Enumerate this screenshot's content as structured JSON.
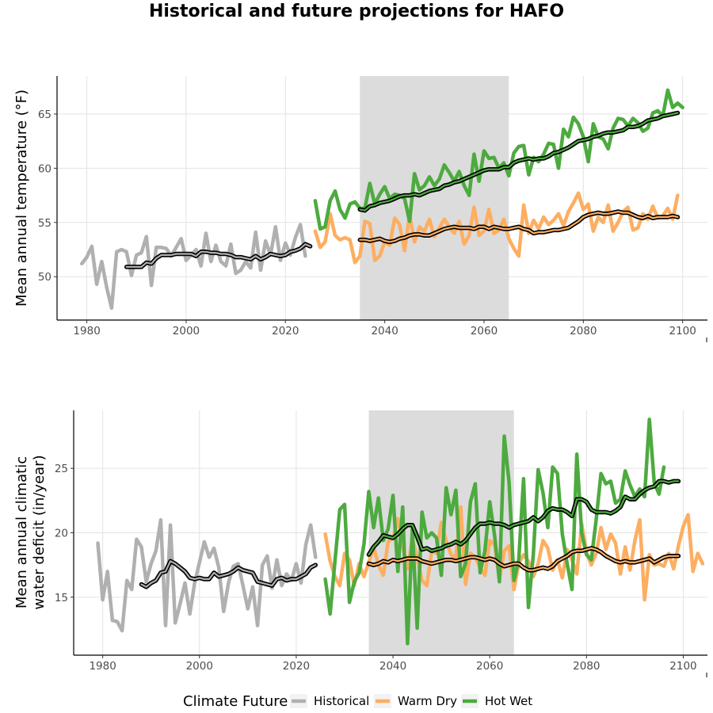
{
  "title": "Historical and future projections for HAFO",
  "legend": {
    "title": "Climate Future",
    "items": [
      {
        "label": "Historical",
        "color": "#b0b0b0"
      },
      {
        "label": "Warm Dry",
        "color": "#fdae61"
      },
      {
        "label": "Hot Wet",
        "color": "#4daa3f"
      }
    ]
  },
  "colors": {
    "historical": "#b0b0b0",
    "warm_dry": "#fdae61",
    "hot_wet": "#4daa3f",
    "smooth_outline": "#000000",
    "shade": "#dcdcdc"
  },
  "chart_data": [
    {
      "type": "line",
      "ylabel": "Mean annual temperature (°F)",
      "xlim": [
        1974,
        2105
      ],
      "ylim": [
        46,
        68.5
      ],
      "xticks": [
        1980,
        2000,
        2020,
        2040,
        2060,
        2080,
        2100
      ],
      "yticks": [
        50,
        55,
        60,
        65
      ],
      "shaded_period": [
        2035,
        2065
      ],
      "series": [
        {
          "name": "Historical",
          "color": "#b0b0b0",
          "start": 1979,
          "values": [
            51.2,
            51.8,
            52.8,
            49.3,
            51.4,
            49.0,
            47.1,
            52.3,
            52.5,
            52.3,
            50.1,
            52.0,
            52.2,
            53.7,
            49.2,
            52.7,
            52.7,
            52.6,
            51.9,
            52.7,
            53.5,
            51.5,
            52.0,
            52.5,
            51.0,
            54.0,
            51.4,
            52.9,
            51.4,
            51.0,
            53.0,
            50.3,
            50.6,
            51.4,
            50.8,
            54.1,
            50.6,
            53.3,
            52.0,
            54.6,
            51.5,
            53.1,
            52.0,
            53.6,
            54.8,
            51.9
          ]
        },
        {
          "name": "Warm Dry",
          "color": "#fdae61",
          "start": 2026,
          "values": [
            54.2,
            52.7,
            53.2,
            55.8,
            53.8,
            53.4,
            53.6,
            53.4,
            51.3,
            51.9,
            55.1,
            54.9,
            51.5,
            51.9,
            53.2,
            52.9,
            55.4,
            54.8,
            52.4,
            55.7,
            53.2,
            54.6,
            54.2,
            55.3,
            53.7,
            54.5,
            55.3,
            54.6,
            54.0,
            55.1,
            53.0,
            53.8,
            56.4,
            53.8,
            54.2,
            56.2,
            54.0,
            54.3,
            55.3,
            53.5,
            52.6,
            51.9,
            56.6,
            54.0,
            55.2,
            54.4,
            55.5,
            54.8,
            55.2,
            55.8,
            54.7,
            56.0,
            56.8,
            57.7,
            56.2,
            56.7,
            54.2,
            55.5,
            55.0,
            56.6,
            54.2,
            55.0,
            56.0,
            56.4,
            54.3,
            54.5,
            55.8,
            55.3,
            56.5,
            55.4,
            55.6,
            56.3,
            55.3,
            57.5
          ]
        },
        {
          "name": "Hot Wet",
          "color": "#4daa3f",
          "start": 2026,
          "values": [
            57.0,
            54.4,
            54.6,
            57.0,
            57.9,
            56.2,
            55.4,
            56.7,
            56.9,
            56.3,
            56.3,
            58.6,
            56.7,
            57.6,
            58.3,
            57.2,
            57.6,
            57.5,
            57.2,
            55.1,
            59.5,
            58.0,
            58.4,
            59.2,
            58.4,
            59.0,
            60.3,
            59.6,
            58.8,
            59.7,
            58.4,
            57.5,
            61.3,
            58.8,
            61.6,
            60.9,
            61.0,
            60.0,
            60.5,
            59.3,
            61.4,
            62.0,
            62.1,
            59.4,
            61.0,
            60.6,
            61.3,
            62.3,
            62.2,
            60.0,
            63.6,
            62.9,
            64.7,
            64.1,
            62.9,
            60.6,
            64.1,
            62.9,
            62.7,
            61.8,
            63.7,
            64.6,
            64.5,
            63.9,
            64.6,
            64.2,
            63.4,
            63.7,
            65.1,
            65.3,
            64.8,
            67.2,
            65.6,
            66.0,
            65.6
          ]
        }
      ],
      "smoothed": [
        {
          "name": "Historical",
          "color": "#b0b0b0",
          "start": 1988,
          "values": [
            50.9,
            50.9,
            50.9,
            50.9,
            51.3,
            51.2,
            51.7,
            52.0,
            52.0,
            52.0,
            52.1,
            52.1,
            52.1,
            52.1,
            51.9,
            52.3,
            52.3,
            52.2,
            52.2,
            52.1,
            52.1,
            52.0,
            51.8,
            51.8,
            51.7,
            51.6,
            51.9,
            51.6,
            51.8,
            52.1,
            52.0,
            51.9,
            52.0,
            52.3,
            52.4,
            52.6,
            53.0,
            52.8
          ]
        },
        {
          "name": "Warm Dry",
          "color": "#fdae61",
          "start": 2035,
          "values": [
            53.4,
            53.4,
            53.3,
            53.4,
            53.5,
            53.3,
            53.2,
            53.3,
            53.5,
            53.6,
            53.8,
            53.9,
            53.9,
            53.8,
            53.8,
            54.0,
            54.2,
            54.4,
            54.5,
            54.6,
            54.5,
            54.5,
            54.5,
            54.4,
            54.6,
            54.6,
            54.4,
            54.6,
            54.5,
            54.4,
            54.4,
            54.5,
            54.6,
            54.4,
            54.3,
            54.0,
            54.1,
            54.1,
            54.2,
            54.3,
            54.3,
            54.4,
            54.5,
            54.8,
            55.1,
            55.5,
            55.7,
            55.8,
            55.9,
            55.8,
            55.8,
            55.9,
            56.0,
            55.9,
            55.9,
            55.7,
            55.5,
            55.4,
            55.6,
            55.4,
            55.5,
            55.5,
            55.5,
            55.6,
            55.5
          ]
        },
        {
          "name": "Hot Wet",
          "color": "#4daa3f",
          "start": 2035,
          "values": [
            56.2,
            56.1,
            56.5,
            56.6,
            56.8,
            56.9,
            57.0,
            57.2,
            57.4,
            57.5,
            57.5,
            57.6,
            57.5,
            57.7,
            57.9,
            58.0,
            58.1,
            58.4,
            58.5,
            58.7,
            58.8,
            59.0,
            59.2,
            59.4,
            59.6,
            59.8,
            59.9,
            59.9,
            59.9,
            60.1,
            60.1,
            60.5,
            60.7,
            60.8,
            60.9,
            60.8,
            60.9,
            60.9,
            61.1,
            61.4,
            61.5,
            61.7,
            61.9,
            62.2,
            62.5,
            62.6,
            62.7,
            62.9,
            63.0,
            63.2,
            63.3,
            63.3,
            63.4,
            63.5,
            63.8,
            63.8,
            63.9,
            64.1,
            64.4,
            64.5,
            64.6,
            64.8,
            64.9,
            65.0,
            65.1
          ]
        }
      ]
    },
    {
      "type": "line",
      "ylabel": "Mean annual climatic water deficit (in/year)",
      "xlim": [
        1974,
        2105
      ],
      "ylim": [
        10.5,
        29.5
      ],
      "xticks": [
        1980,
        2000,
        2020,
        2040,
        2060,
        2080,
        2100
      ],
      "yticks": [
        15,
        20,
        25
      ],
      "shaded_period": [
        2035,
        2065
      ],
      "series": [
        {
          "name": "Historical",
          "color": "#b0b0b0",
          "start": 1979,
          "values": [
            19.2,
            14.8,
            17.0,
            13.2,
            13.1,
            12.4,
            16.3,
            15.6,
            19.5,
            18.9,
            16.2,
            17.6,
            18.6,
            21.0,
            12.8,
            20.6,
            13.0,
            14.5,
            16.1,
            13.7,
            16.1,
            17.7,
            19.3,
            18.1,
            18.8,
            17.3,
            13.9,
            16.1,
            17.4,
            17.6,
            15.9,
            14.1,
            15.8,
            12.8,
            17.5,
            18.2,
            15.7,
            17.9,
            15.9,
            16.8,
            16.3,
            17.6,
            16.1,
            19.1,
            20.6,
            18.1
          ]
        },
        {
          "name": "Warm Dry",
          "color": "#fdae61",
          "start": 2026,
          "values": [
            19.9,
            17.8,
            16.6,
            15.9,
            18.4,
            17.9,
            15.9,
            17.6,
            16.6,
            17.7,
            18.9,
            17.5,
            16.7,
            19.3,
            19.6,
            21.1,
            19.0,
            17.2,
            19.6,
            18.0,
            16.3,
            15.9,
            18.6,
            18.4,
            20.8,
            19.4,
            18.3,
            18.0,
            22.0,
            16.0,
            18.4,
            18.1,
            17.3,
            16.7,
            19.4,
            19.1,
            16.4,
            18.6,
            19.0,
            15.6,
            17.6,
            18.3,
            17.8,
            16.6,
            17.6,
            19.4,
            18.8,
            17.1,
            17.9,
            16.5,
            18.7,
            17.9,
            16.8,
            20.7,
            18.5,
            17.5,
            18.4,
            20.4,
            18.7,
            19.9,
            19.2,
            16.8,
            18.9,
            17.1,
            19.4,
            21.0,
            14.8,
            18.3,
            17.5,
            17.6,
            17.4,
            18.4,
            17.2,
            19.0,
            20.5,
            21.4,
            17.0,
            18.4,
            17.6
          ]
        },
        {
          "name": "Hot Wet",
          "color": "#4daa3f",
          "start": 2026,
          "values": [
            16.4,
            13.7,
            17.8,
            21.8,
            22.2,
            14.6,
            16.2,
            16.9,
            19.1,
            23.2,
            20.4,
            22.7,
            19.4,
            20.3,
            22.9,
            17.0,
            22.0,
            11.4,
            20.3,
            12.6,
            21.6,
            19.6,
            20.0,
            19.6,
            16.7,
            23.5,
            21.4,
            23.3,
            16.6,
            17.6,
            22.4,
            23.8,
            16.9,
            18.6,
            22.4,
            19.8,
            16.2,
            27.5,
            23.9,
            16.3,
            17.9,
            24.2,
            14.2,
            18.3,
            24.9,
            23.1,
            20.4,
            25.1,
            24.6,
            19.9,
            17.6,
            15.6,
            26.1,
            20.0,
            18.3,
            17.9,
            21.0,
            24.6,
            23.8,
            24.0,
            22.3,
            22.6,
            24.8,
            23.7,
            22.8,
            23.4,
            22.8,
            28.8,
            23.9,
            23.0,
            25.1
          ]
        }
      ],
      "smoothed": [
        {
          "name": "Historical",
          "color": "#b0b0b0",
          "start": 1988,
          "values": [
            16.0,
            15.8,
            16.1,
            16.3,
            16.9,
            17.0,
            17.8,
            17.6,
            17.3,
            17.0,
            16.5,
            16.4,
            16.5,
            16.4,
            16.4,
            16.9,
            16.6,
            16.7,
            16.8,
            17.0,
            17.3,
            17.1,
            17.0,
            16.9,
            16.2,
            16.1,
            16.0,
            15.9,
            16.4,
            16.5,
            16.3,
            16.4,
            16.4,
            16.6,
            16.8,
            17.3,
            17.5
          ]
        },
        {
          "name": "Warm Dry",
          "color": "#fdae61",
          "start": 2035,
          "values": [
            17.6,
            17.5,
            17.6,
            17.8,
            17.7,
            17.9,
            17.8,
            17.9,
            18.0,
            18.0,
            18.0,
            17.8,
            17.7,
            17.6,
            17.7,
            17.8,
            17.9,
            17.9,
            17.8,
            17.9,
            18.0,
            18.1,
            18.1,
            18.0,
            17.9,
            18.0,
            17.9,
            17.6,
            17.4,
            17.5,
            17.6,
            17.6,
            17.3,
            17.1,
            17.1,
            17.2,
            17.3,
            17.2,
            17.4,
            17.8,
            18.0,
            18.2,
            18.5,
            18.6,
            18.6,
            18.7,
            18.8,
            18.7,
            18.5,
            18.2,
            18.0,
            17.8,
            17.7,
            17.8,
            17.7,
            17.7,
            17.8,
            17.9,
            18.0,
            17.7,
            17.9,
            18.1,
            18.2,
            18.2,
            18.2
          ]
        },
        {
          "name": "Hot Wet",
          "color": "#4daa3f",
          "start": 2035,
          "values": [
            18.3,
            18.9,
            19.3,
            19.8,
            19.7,
            19.6,
            19.9,
            20.3,
            20.6,
            20.6,
            19.7,
            18.7,
            18.8,
            18.6,
            18.7,
            18.8,
            19.0,
            19.1,
            19.3,
            19.1,
            19.4,
            19.9,
            20.4,
            20.7,
            20.7,
            20.8,
            20.7,
            20.7,
            20.6,
            20.4,
            20.6,
            20.7,
            20.8,
            20.9,
            21.2,
            20.9,
            21.2,
            21.7,
            21.9,
            21.8,
            21.8,
            21.6,
            21.3,
            22.6,
            22.6,
            22.4,
            21.8,
            21.6,
            21.6,
            21.6,
            21.5,
            21.7,
            22.0,
            22.8,
            22.6,
            22.6,
            23.0,
            23.3,
            23.5,
            23.6,
            24.0,
            24.0,
            23.9,
            24.0,
            24.0
          ]
        }
      ]
    }
  ]
}
